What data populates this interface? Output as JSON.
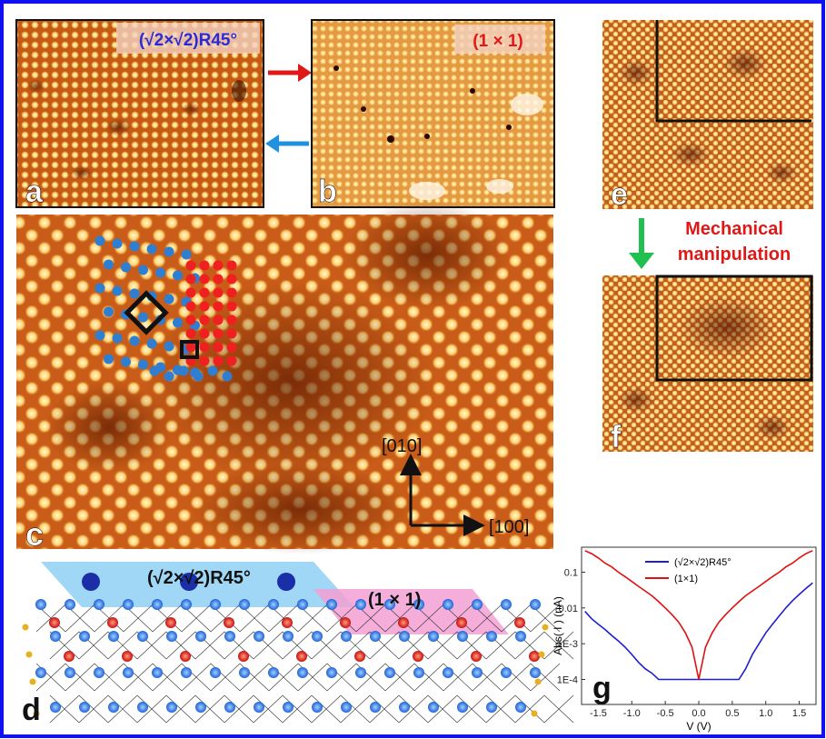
{
  "figure": {
    "panel_labels": [
      "a",
      "b",
      "c",
      "d",
      "e",
      "f",
      "g"
    ],
    "a_text": "(√2×√2)R45°",
    "b_text": "(1 × 1)",
    "c_directions": [
      "[010]",
      "[100]"
    ],
    "d_texts": [
      "(√2×√2)R45°",
      "(1 × 1)"
    ],
    "manipulation": [
      "Mechanical",
      "manipulation"
    ]
  },
  "chart_data": {
    "type": "line",
    "xlabel": "V (V)",
    "ylabel": "Abs( I ) (nA)",
    "yscale": "log",
    "legend": "top",
    "xlim": [
      -1.75,
      1.75
    ],
    "ylim": [
      2e-05,
      0.5
    ],
    "xticks": [
      -1.5,
      {
        "value": -1,
        "label": "-1.0"
      },
      -0.5,
      {
        "value": 0,
        "label": "0.0"
      },
      0.5,
      {
        "value": 1,
        "label": "1.0"
      },
      1.5
    ],
    "yticks": [
      {
        "value": 0.0001,
        "label": "1E-4"
      },
      {
        "value": 0.001,
        "label": "1E-3"
      },
      0.01,
      0.1
    ],
    "x": [
      -1.7,
      -1.6,
      -1.5,
      -1.4,
      -1.3,
      -1.2,
      -1.1,
      -1.0,
      -0.9,
      -0.8,
      -0.7,
      -0.6,
      -0.5,
      -0.4,
      -0.3,
      -0.2,
      -0.1,
      0,
      0.1,
      0.2,
      0.3,
      0.4,
      0.5,
      0.6,
      0.7,
      0.8,
      0.9,
      1.0,
      1.1,
      1.2,
      1.3,
      1.4,
      1.5,
      1.6,
      1.7
    ],
    "series": [
      {
        "name": "(√2×√2)R45°",
        "color": "#1f1fd0",
        "values": [
          0.008,
          0.005,
          0.0035,
          0.0025,
          0.0017,
          0.0012,
          0.0008,
          0.0005,
          0.0003,
          0.0002,
          0.00015,
          0.0001,
          0.0001,
          0.0001,
          0.0001,
          0.0001,
          0.0001,
          0.0001,
          0.0001,
          0.0001,
          0.0001,
          0.0001,
          0.0001,
          0.0001,
          0.0002,
          0.0005,
          0.001,
          0.002,
          0.0035,
          0.006,
          0.01,
          0.016,
          0.024,
          0.035,
          0.05
        ]
      },
      {
        "name": "(1×1)",
        "color": "#e01010",
        "values": [
          0.4,
          0.33,
          0.25,
          0.18,
          0.14,
          0.1,
          0.075,
          0.055,
          0.04,
          0.03,
          0.022,
          0.015,
          0.01,
          0.0065,
          0.004,
          0.002,
          0.0008,
          0.0001,
          0.0008,
          0.002,
          0.004,
          0.0065,
          0.01,
          0.015,
          0.022,
          0.03,
          0.04,
          0.055,
          0.075,
          0.1,
          0.14,
          0.18,
          0.25,
          0.33,
          0.4
        ]
      }
    ]
  }
}
